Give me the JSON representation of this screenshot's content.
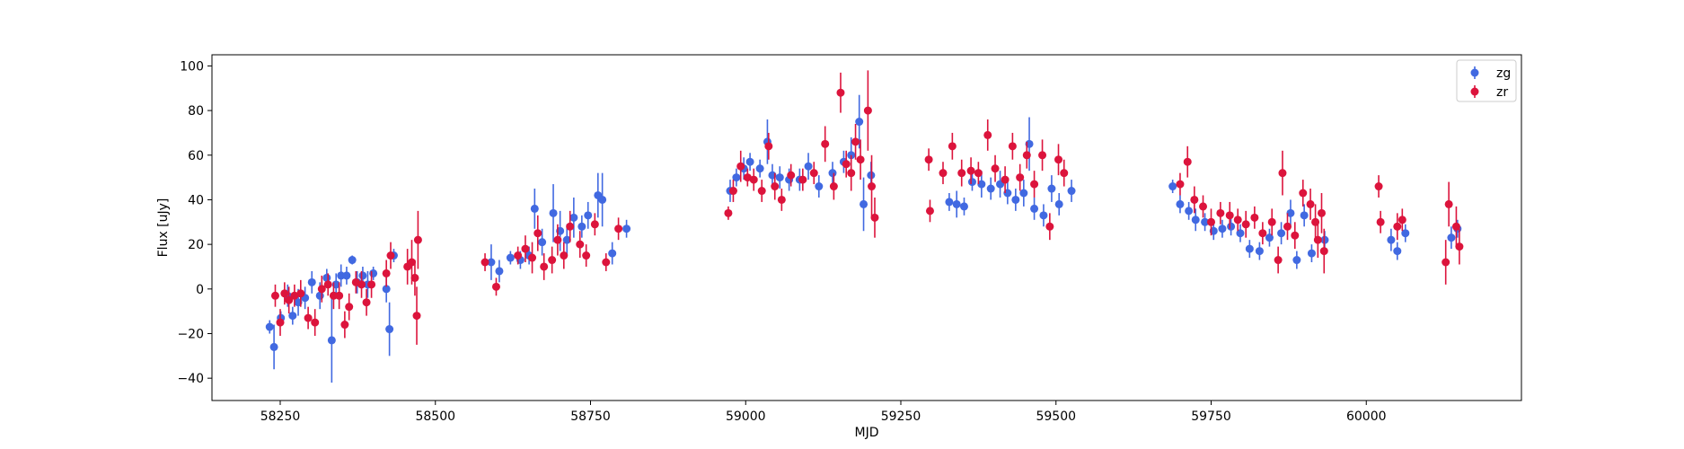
{
  "chart_data": {
    "type": "scatter",
    "title": "",
    "xlabel": "MJD",
    "ylabel": "Flux [uJy]",
    "xlim": [
      58140,
      60250
    ],
    "ylim": [
      -50,
      105
    ],
    "xticks": [
      58250,
      58500,
      58750,
      59000,
      59250,
      59500,
      59750,
      60000
    ],
    "yticks": [
      -40,
      -20,
      0,
      20,
      40,
      60,
      80,
      100
    ],
    "grid": false,
    "legend_position": "top-right",
    "errorbars": true,
    "series": [
      {
        "name": "zg",
        "color": "#4169e1",
        "points": [
          [
            58233,
            -17,
            3
          ],
          [
            58240,
            -26,
            10
          ],
          [
            58251,
            -13,
            3
          ],
          [
            58262,
            -3,
            5
          ],
          [
            58270,
            -12,
            4
          ],
          [
            58279,
            -6,
            6
          ],
          [
            58290,
            -4,
            5
          ],
          [
            58301,
            3,
            5
          ],
          [
            58314,
            -3,
            6
          ],
          [
            58325,
            5,
            4
          ],
          [
            58333,
            -23,
            19
          ],
          [
            58340,
            2,
            5
          ],
          [
            58348,
            6,
            5
          ],
          [
            58357,
            6,
            4
          ],
          [
            58366,
            13,
            2
          ],
          [
            58374,
            3,
            5
          ],
          [
            58383,
            6,
            4
          ],
          [
            58391,
            2,
            6
          ],
          [
            58400,
            7,
            3
          ],
          [
            58421,
            0,
            6
          ],
          [
            58426,
            -18,
            12
          ],
          [
            58433,
            15,
            3
          ],
          [
            58590,
            12,
            8
          ],
          [
            58603,
            8,
            5
          ],
          [
            58621,
            14,
            3
          ],
          [
            58637,
            13,
            4
          ],
          [
            58651,
            15,
            4
          ],
          [
            58660,
            36,
            9
          ],
          [
            58672,
            21,
            6
          ],
          [
            58690,
            34,
            13
          ],
          [
            58701,
            26,
            9
          ],
          [
            58712,
            22,
            7
          ],
          [
            58723,
            32,
            9
          ],
          [
            58736,
            28,
            5
          ],
          [
            58746,
            33,
            6
          ],
          [
            58762,
            42,
            10
          ],
          [
            58769,
            40,
            12
          ],
          [
            58785,
            16,
            5
          ],
          [
            58808,
            27,
            4
          ],
          [
            58975,
            44,
            5
          ],
          [
            58985,
            50,
            4
          ],
          [
            58997,
            54,
            5
          ],
          [
            59007,
            57,
            4
          ],
          [
            59023,
            54,
            4
          ],
          [
            59035,
            66,
            10
          ],
          [
            59043,
            51,
            5
          ],
          [
            59055,
            50,
            5
          ],
          [
            59070,
            49,
            5
          ],
          [
            59087,
            49,
            5
          ],
          [
            59101,
            55,
            6
          ],
          [
            59118,
            46,
            5
          ],
          [
            59140,
            52,
            5
          ],
          [
            59158,
            57,
            5
          ],
          [
            59170,
            60,
            8
          ],
          [
            59183,
            75,
            12
          ],
          [
            59190,
            38,
            12
          ],
          [
            59202,
            51,
            6
          ],
          [
            59328,
            39,
            4
          ],
          [
            59340,
            38,
            6
          ],
          [
            59352,
            37,
            4
          ],
          [
            59365,
            48,
            4
          ],
          [
            59380,
            47,
            6
          ],
          [
            59395,
            45,
            5
          ],
          [
            59410,
            47,
            6
          ],
          [
            59422,
            43,
            5
          ],
          [
            59435,
            40,
            5
          ],
          [
            59448,
            43,
            6
          ],
          [
            59457,
            65,
            12
          ],
          [
            59465,
            36,
            5
          ],
          [
            59480,
            33,
            5
          ],
          [
            59493,
            45,
            6
          ],
          [
            59505,
            38,
            5
          ],
          [
            59525,
            44,
            5
          ],
          [
            59688,
            46,
            3
          ],
          [
            59700,
            38,
            4
          ],
          [
            59714,
            35,
            4
          ],
          [
            59725,
            31,
            5
          ],
          [
            59740,
            30,
            4
          ],
          [
            59754,
            26,
            4
          ],
          [
            59768,
            27,
            4
          ],
          [
            59782,
            28,
            4
          ],
          [
            59797,
            25,
            4
          ],
          [
            59812,
            18,
            4
          ],
          [
            59828,
            17,
            4
          ],
          [
            59844,
            23,
            4
          ],
          [
            59863,
            25,
            5
          ],
          [
            59878,
            34,
            6
          ],
          [
            59888,
            13,
            4
          ],
          [
            59900,
            33,
            5
          ],
          [
            59912,
            16,
            4
          ],
          [
            59933,
            22,
            4
          ],
          [
            60040,
            22,
            5
          ],
          [
            60050,
            17,
            4
          ],
          [
            60063,
            25,
            4
          ],
          [
            60137,
            23,
            5
          ],
          [
            60147,
            27,
            4
          ]
        ]
      },
      {
        "name": "zr",
        "color": "#dc143c",
        "points": [
          [
            58242,
            -3,
            5
          ],
          [
            58250,
            -15,
            6
          ],
          [
            58257,
            -2,
            5
          ],
          [
            58264,
            -5,
            6
          ],
          [
            58273,
            -3,
            5
          ],
          [
            58283,
            -2,
            6
          ],
          [
            58295,
            -13,
            5
          ],
          [
            58306,
            -15,
            6
          ],
          [
            58317,
            0,
            6
          ],
          [
            58327,
            2,
            5
          ],
          [
            58336,
            -3,
            6
          ],
          [
            58345,
            -3,
            6
          ],
          [
            58354,
            -16,
            6
          ],
          [
            58361,
            -8,
            6
          ],
          [
            58372,
            3,
            5
          ],
          [
            58381,
            2,
            6
          ],
          [
            58389,
            -6,
            6
          ],
          [
            58397,
            2,
            6
          ],
          [
            58421,
            7,
            6
          ],
          [
            58428,
            15,
            6
          ],
          [
            58455,
            10,
            8
          ],
          [
            58462,
            12,
            10
          ],
          [
            58467,
            5,
            8
          ],
          [
            58470,
            -12,
            13
          ],
          [
            58472,
            22,
            13
          ],
          [
            58580,
            12,
            4
          ],
          [
            58598,
            1,
            4
          ],
          [
            58633,
            15,
            4
          ],
          [
            58645,
            18,
            6
          ],
          [
            58656,
            14,
            7
          ],
          [
            58665,
            25,
            8
          ],
          [
            58675,
            10,
            6
          ],
          [
            58688,
            13,
            6
          ],
          [
            58697,
            22,
            7
          ],
          [
            58707,
            15,
            6
          ],
          [
            58717,
            28,
            7
          ],
          [
            58733,
            20,
            6
          ],
          [
            58743,
            15,
            5
          ],
          [
            58757,
            29,
            5
          ],
          [
            58775,
            12,
            4
          ],
          [
            58795,
            27,
            5
          ],
          [
            58972,
            34,
            3
          ],
          [
            58980,
            44,
            5
          ],
          [
            58992,
            55,
            7
          ],
          [
            59003,
            50,
            4
          ],
          [
            59013,
            49,
            5
          ],
          [
            59026,
            44,
            5
          ],
          [
            59037,
            64,
            6
          ],
          [
            59047,
            46,
            6
          ],
          [
            59058,
            40,
            5
          ],
          [
            59073,
            51,
            5
          ],
          [
            59092,
            49,
            5
          ],
          [
            59110,
            52,
            5
          ],
          [
            59128,
            65,
            8
          ],
          [
            59142,
            46,
            6
          ],
          [
            59153,
            88,
            9
          ],
          [
            59162,
            56,
            6
          ],
          [
            59170,
            52,
            8
          ],
          [
            59177,
            66,
            8
          ],
          [
            59185,
            58,
            9
          ],
          [
            59197,
            80,
            18
          ],
          [
            59203,
            46,
            14
          ],
          [
            59208,
            32,
            9
          ],
          [
            59295,
            58,
            5
          ],
          [
            59297,
            35,
            5
          ],
          [
            59318,
            52,
            5
          ],
          [
            59333,
            64,
            6
          ],
          [
            59348,
            52,
            6
          ],
          [
            59363,
            53,
            6
          ],
          [
            59375,
            52,
            5
          ],
          [
            59390,
            69,
            7
          ],
          [
            59402,
            54,
            6
          ],
          [
            59418,
            49,
            6
          ],
          [
            59430,
            64,
            6
          ],
          [
            59442,
            50,
            6
          ],
          [
            59453,
            60,
            6
          ],
          [
            59465,
            47,
            6
          ],
          [
            59478,
            60,
            7
          ],
          [
            59490,
            28,
            6
          ],
          [
            59504,
            58,
            7
          ],
          [
            59513,
            52,
            6
          ],
          [
            59700,
            47,
            5
          ],
          [
            59712,
            57,
            7
          ],
          [
            59723,
            40,
            6
          ],
          [
            59737,
            37,
            5
          ],
          [
            59750,
            30,
            6
          ],
          [
            59765,
            34,
            5
          ],
          [
            59780,
            33,
            6
          ],
          [
            59793,
            31,
            5
          ],
          [
            59806,
            29,
            6
          ],
          [
            59820,
            32,
            5
          ],
          [
            59833,
            25,
            5
          ],
          [
            59848,
            30,
            6
          ],
          [
            59858,
            13,
            6
          ],
          [
            59865,
            52,
            10
          ],
          [
            59873,
            28,
            6
          ],
          [
            59885,
            24,
            6
          ],
          [
            59898,
            43,
            6
          ],
          [
            59910,
            38,
            7
          ],
          [
            59918,
            30,
            8
          ],
          [
            59922,
            22,
            8
          ],
          [
            59928,
            34,
            9
          ],
          [
            59932,
            17,
            10
          ],
          [
            60020,
            46,
            5
          ],
          [
            60023,
            30,
            5
          ],
          [
            60050,
            28,
            6
          ],
          [
            60058,
            31,
            5
          ],
          [
            60128,
            12,
            10
          ],
          [
            60133,
            38,
            10
          ],
          [
            60145,
            28,
            9
          ],
          [
            60150,
            19,
            8
          ]
        ]
      }
    ]
  }
}
